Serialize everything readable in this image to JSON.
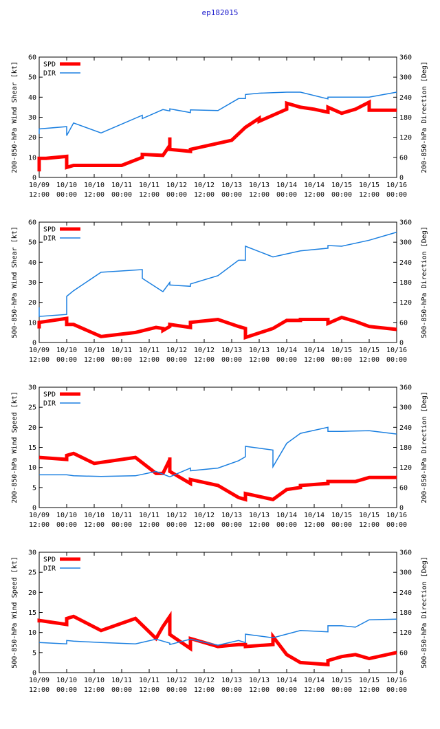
{
  "title": "ep182015",
  "colors": {
    "spd": "#ff0000",
    "dir": "#1a7fe0",
    "axis": "#000000",
    "title": "#1a1acc"
  },
  "x_ticks": [
    "10/09\n12:00",
    "10/10\n00:00",
    "10/10\n12:00",
    "10/11\n00:00",
    "10/11\n12:00",
    "10/12\n00:00",
    "10/12\n12:00",
    "10/13\n00:00",
    "10/13\n12:00",
    "10/14\n00:00",
    "10/14\n12:00",
    "10/15\n00:00",
    "10/15\n12:00",
    "10/16\n00:00"
  ],
  "chart_data": [
    {
      "type": "line",
      "ylabel_left": "200-850-hPa Wind Shear [kt]",
      "ylabel_right": "200-850-hPa Direction [Deg]",
      "ylim_left": [
        0,
        60
      ],
      "yticks_left": [
        0,
        10,
        20,
        30,
        40,
        50,
        60
      ],
      "ylim_right": [
        0,
        360
      ],
      "yticks_right": [
        0,
        60,
        120,
        180,
        240,
        300,
        360
      ],
      "xlim": [
        0,
        156
      ],
      "series": [
        {
          "name": "SPD",
          "axis": "left",
          "x": [
            0,
            0,
            3,
            12,
            12,
            15,
            24,
            36,
            45,
            45,
            54,
            57,
            57,
            57,
            66,
            66,
            84,
            90,
            96,
            96,
            108,
            108,
            114,
            120,
            126,
            126,
            132,
            138,
            144,
            144,
            156
          ],
          "y": [
            3,
            9.5,
            9.5,
            10.5,
            5,
            6,
            6,
            6,
            10,
            11.5,
            11,
            16,
            20,
            14,
            13,
            14,
            18.5,
            25,
            29.5,
            28,
            34,
            37,
            35,
            34,
            32.5,
            35,
            32,
            34,
            37.5,
            33.5,
            33.5
          ]
        },
        {
          "name": "DIR",
          "axis": "right",
          "x": [
            0,
            0,
            12,
            12,
            15,
            27,
            45,
            45,
            54,
            57,
            57,
            66,
            66,
            78,
            87,
            90,
            90,
            96,
            108,
            114,
            126,
            126,
            132,
            144,
            156
          ],
          "y": [
            130,
            145,
            152,
            125,
            163,
            133,
            186,
            176,
            203,
            199,
            205,
            194,
            202,
            200,
            236,
            236,
            248,
            252,
            255,
            255,
            235,
            240,
            240,
            240,
            255
          ]
        }
      ]
    },
    {
      "type": "line",
      "ylabel_left": "500-850-hPa Wind Shear [kt]",
      "ylabel_right": "500-850-hPa Direction [Deg]",
      "ylim_left": [
        0,
        60
      ],
      "yticks_left": [
        0,
        10,
        20,
        30,
        40,
        50,
        60
      ],
      "ylim_right": [
        0,
        360
      ],
      "yticks_right": [
        0,
        60,
        120,
        180,
        240,
        300,
        360
      ],
      "xlim": [
        0,
        156
      ],
      "series": [
        {
          "name": "SPD",
          "axis": "left",
          "x": [
            0,
            0,
            12,
            12,
            15,
            27,
            42,
            51,
            54,
            54,
            57,
            57,
            66,
            66,
            78,
            87,
            90,
            90,
            102,
            108,
            114,
            114,
            126,
            126,
            132,
            138,
            144,
            156
          ],
          "y": [
            7,
            10,
            12,
            9,
            9,
            3,
            5,
            7.5,
            7,
            6,
            8,
            9,
            7.5,
            10,
            11.5,
            8,
            7,
            2.5,
            7,
            11,
            11,
            11.5,
            11.5,
            9.5,
            12.5,
            10.5,
            8,
            6.5
          ]
        },
        {
          "name": "DIR",
          "axis": "right",
          "x": [
            0,
            0,
            12,
            12,
            15,
            27,
            45,
            45,
            54,
            57,
            57,
            66,
            66,
            78,
            87,
            90,
            90,
            102,
            102,
            114,
            126,
            126,
            132,
            144,
            156
          ],
          "y": [
            105,
            78,
            84,
            138,
            155,
            210,
            218,
            192,
            152,
            180,
            172,
            168,
            175,
            200,
            246,
            246,
            288,
            256,
            256,
            274,
            282,
            290,
            288,
            306,
            330
          ]
        }
      ]
    },
    {
      "type": "line",
      "ylabel_left": "200-850-hPa Wind Speed [kt]",
      "ylabel_right": "200-850-hPa Direction [Deg]",
      "ylim_left": [
        0,
        30
      ],
      "yticks_left": [
        0,
        5,
        10,
        15,
        20,
        25,
        30
      ],
      "ylim_right": [
        0,
        360
      ],
      "yticks_right": [
        0,
        60,
        120,
        180,
        240,
        300,
        360
      ],
      "xlim": [
        0,
        156
      ],
      "series": [
        {
          "name": "SPD",
          "axis": "left",
          "x": [
            0,
            0,
            12,
            12,
            15,
            24,
            42,
            51,
            54,
            57,
            57,
            57,
            66,
            66,
            78,
            87,
            90,
            90,
            102,
            108,
            114,
            114,
            126,
            126,
            132,
            138,
            144,
            156
          ],
          "y": [
            12.5,
            12.5,
            12,
            13,
            13.5,
            11,
            12.5,
            8.5,
            8.5,
            12,
            12.5,
            9,
            6,
            7,
            5.5,
            2.5,
            2,
            3.5,
            2,
            4.5,
            5,
            5.5,
            6,
            6.5,
            6.5,
            6.5,
            7.5,
            7.5
          ]
        },
        {
          "name": "DIR",
          "axis": "right",
          "x": [
            0,
            12,
            15,
            27,
            42,
            51,
            57,
            66,
            66,
            78,
            87,
            90,
            90,
            102,
            102,
            108,
            114,
            126,
            126,
            132,
            144,
            156
          ],
          "y": [
            98,
            98,
            95,
            93,
            95,
            108,
            92,
            118,
            110,
            118,
            140,
            152,
            183,
            172,
            122,
            192,
            222,
            240,
            228,
            228,
            230,
            220
          ]
        }
      ]
    },
    {
      "type": "line",
      "ylabel_left": "500-850-hPa Wind Speed [kt]",
      "ylabel_right": "500-850-hPa Direction [Deg]",
      "ylim_left": [
        0,
        30
      ],
      "yticks_left": [
        0,
        5,
        10,
        15,
        20,
        25,
        30
      ],
      "ylim_right": [
        0,
        360
      ],
      "yticks_right": [
        0,
        60,
        120,
        180,
        240,
        300,
        360
      ],
      "xlim": [
        0,
        156
      ],
      "series": [
        {
          "name": "SPD",
          "axis": "left",
          "x": [
            0,
            0,
            12,
            12,
            15,
            27,
            42,
            51,
            54,
            57,
            57,
            57,
            66,
            66,
            78,
            87,
            90,
            90,
            102,
            102,
            108,
            114,
            126,
            126,
            132,
            138,
            144,
            156
          ],
          "y": [
            12.5,
            13,
            12,
            13.5,
            14,
            10.5,
            13.5,
            8.5,
            11.5,
            14,
            13.5,
            9.5,
            6,
            8.5,
            6.5,
            7,
            7,
            6.5,
            7,
            9,
            4.5,
            2.5,
            2,
            3,
            4,
            4.5,
            3.5,
            5
          ]
        },
        {
          "name": "DIR",
          "axis": "right",
          "x": [
            0,
            12,
            12,
            15,
            27,
            42,
            51,
            57,
            57,
            66,
            78,
            87,
            90,
            90,
            102,
            102,
            114,
            126,
            126,
            132,
            138,
            144,
            156
          ],
          "y": [
            90,
            86,
            96,
            94,
            90,
            86,
            100,
            88,
            84,
            100,
            82,
            96,
            90,
            115,
            104,
            104,
            126,
            122,
            140,
            140,
            136,
            158,
            160
          ]
        }
      ]
    }
  ]
}
